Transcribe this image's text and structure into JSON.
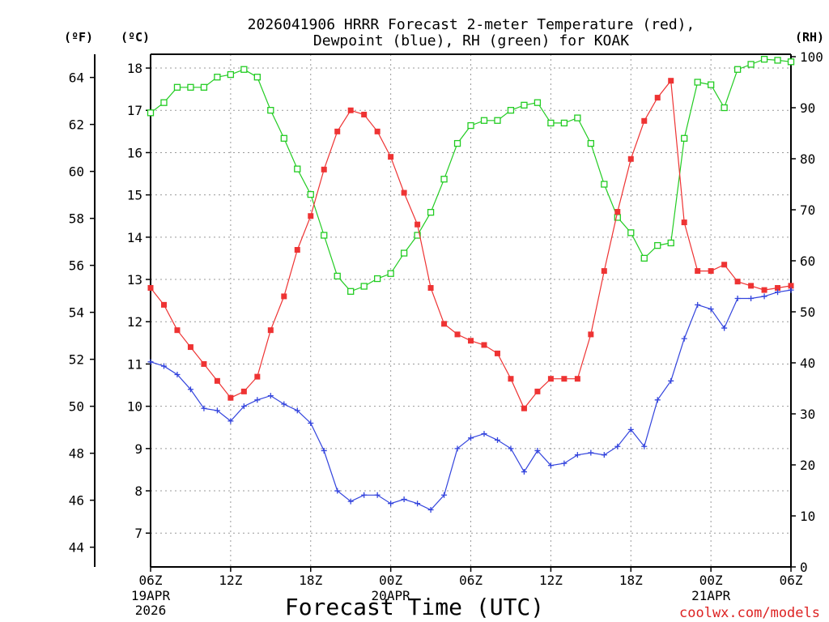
{
  "chart_data": {
    "type": "line",
    "title_line1": "2026041906 HRRR Forecast 2-meter Temperature (red),",
    "title_line2": "Dewpoint (blue), RH (green) for KOAK",
    "xlabel": "Forecast Time (UTC)",
    "credit": "coolwx.com/models",
    "left_axis_unit_f": "(ºF)",
    "left_axis_unit_c": "(ºC)",
    "right_axis_unit": "(RH)",
    "x_tick_labels": [
      "06Z",
      "12Z",
      "18Z",
      "00Z",
      "06Z",
      "12Z",
      "18Z",
      "00Z",
      "06Z"
    ],
    "x_date_labels": [
      {
        "tick": 0,
        "lines": [
          "19APR",
          "2026"
        ]
      },
      {
        "tick": 3,
        "lines": [
          "20APR"
        ]
      },
      {
        "tick": 7,
        "lines": [
          "21APR"
        ]
      }
    ],
    "xlim": [
      0,
      48
    ],
    "celsius_ticks": [
      7,
      8,
      9,
      10,
      11,
      12,
      13,
      14,
      15,
      16,
      17,
      18
    ],
    "fahrenheit_ticks": [
      44,
      46,
      48,
      50,
      52,
      54,
      56,
      58,
      60,
      62,
      64
    ],
    "rh_ticks": [
      0,
      10,
      20,
      30,
      40,
      50,
      60,
      70,
      80,
      90,
      100
    ],
    "grid": true,
    "colors": {
      "temperature": "#ee3333",
      "dewpoint": "#3344dd",
      "rh": "#22cc22"
    },
    "series": [
      {
        "name": "Temperature",
        "axis": "celsius",
        "color": "#ee3333",
        "marker": "filled-square",
        "x": [
          0,
          1,
          2,
          3,
          4,
          5,
          6,
          7,
          8,
          9,
          10,
          11,
          12,
          13,
          14,
          15,
          16,
          17,
          18,
          19,
          20,
          21,
          22,
          23,
          24,
          25,
          26,
          27,
          28,
          29,
          30,
          31,
          32,
          33,
          34,
          35,
          36,
          37,
          38,
          39,
          40,
          41,
          42,
          43,
          44,
          45,
          46,
          47,
          48
        ],
        "values": [
          12.8,
          12.4,
          11.8,
          11.4,
          11.0,
          10.6,
          10.2,
          10.35,
          10.7,
          11.8,
          12.6,
          13.7,
          14.5,
          15.6,
          16.5,
          17.0,
          16.9,
          16.5,
          15.9,
          15.05,
          14.3,
          12.8,
          11.95,
          11.7,
          11.55,
          11.45,
          11.25,
          10.65,
          9.95,
          10.35,
          10.65,
          10.65,
          10.65,
          11.7,
          13.2,
          14.6,
          15.85,
          16.75,
          17.3,
          17.7,
          14.35,
          13.2,
          13.2,
          13.35,
          12.95,
          12.85,
          12.75,
          12.8,
          12.85
        ]
      },
      {
        "name": "Dewpoint",
        "axis": "celsius",
        "color": "#3344dd",
        "marker": "plus",
        "x": [
          0,
          1,
          2,
          3,
          4,
          5,
          6,
          7,
          8,
          9,
          10,
          11,
          12,
          13,
          14,
          15,
          16,
          17,
          18,
          19,
          20,
          21,
          22,
          23,
          24,
          25,
          26,
          27,
          28,
          29,
          30,
          31,
          32,
          33,
          34,
          35,
          36,
          37,
          38,
          39,
          40,
          41,
          42,
          43,
          44,
          45,
          46,
          47,
          48
        ],
        "values": [
          11.05,
          10.95,
          10.75,
          10.4,
          9.95,
          9.9,
          9.65,
          10.0,
          10.15,
          10.25,
          10.05,
          9.9,
          9.6,
          8.95,
          8.0,
          7.75,
          7.9,
          7.9,
          7.7,
          7.8,
          7.7,
          7.55,
          7.9,
          9.0,
          9.25,
          9.35,
          9.2,
          9.0,
          8.45,
          8.95,
          8.6,
          8.65,
          8.85,
          8.9,
          8.85,
          9.05,
          9.45,
          9.05,
          10.15,
          10.6,
          11.6,
          12.4,
          12.3,
          11.85,
          12.55,
          12.55,
          12.6,
          12.7,
          12.75
        ]
      },
      {
        "name": "RH",
        "axis": "rh",
        "color": "#22cc22",
        "marker": "open-square",
        "x": [
          0,
          1,
          2,
          3,
          4,
          5,
          6,
          7,
          8,
          9,
          10,
          11,
          12,
          13,
          14,
          15,
          16,
          17,
          18,
          19,
          20,
          21,
          22,
          23,
          24,
          25,
          26,
          27,
          28,
          29,
          30,
          31,
          32,
          33,
          34,
          35,
          36,
          37,
          38,
          39,
          40,
          41,
          42,
          43,
          44,
          45,
          46,
          47,
          48
        ],
        "values": [
          89,
          91,
          94,
          94,
          94,
          96,
          96.5,
          97.5,
          96,
          89.5,
          84,
          78,
          73,
          65,
          57,
          54,
          55,
          56.5,
          57.5,
          61.5,
          65,
          69.5,
          76,
          83,
          86.5,
          87.5,
          87.5,
          89.5,
          90.5,
          91,
          87,
          87,
          88,
          83,
          75,
          68.5,
          65.5,
          60.5,
          63,
          63.5,
          84,
          95,
          94.5,
          90,
          97.5,
          98.5,
          99.5,
          99.3,
          99
        ]
      }
    ]
  }
}
